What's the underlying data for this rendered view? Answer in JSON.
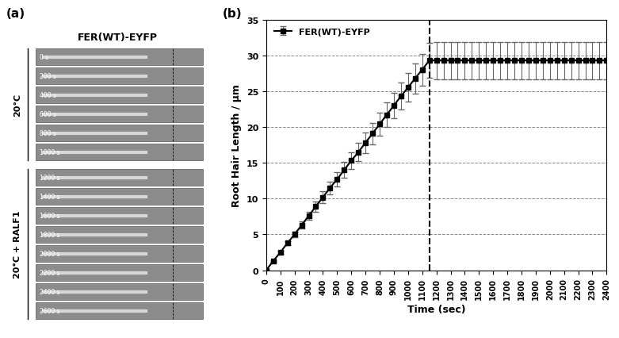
{
  "panel_a": {
    "label": "(a)",
    "title": "FER(WT)-EYFP",
    "conditions": [
      {
        "label": "20°C",
        "times": [
          "0 s",
          "200 s",
          "400 s",
          "600 s",
          "800 s",
          "1000 s"
        ]
      },
      {
        "label": "20°C + RALF1",
        "times": [
          "1200 s",
          "1400 s",
          "1600 s",
          "1800 s",
          "2000 s",
          "2200 s",
          "2400 s",
          "2600 s"
        ]
      }
    ]
  },
  "chart_data": {
    "type": "line",
    "label": "(b)",
    "x_label": "Time (sec)",
    "y_label": "Root Hair Length / µm",
    "x": [
      0,
      50,
      100,
      150,
      200,
      250,
      300,
      350,
      400,
      450,
      500,
      550,
      600,
      650,
      700,
      750,
      800,
      850,
      900,
      950,
      1000,
      1050,
      1100,
      1150,
      1200,
      1250,
      1300,
      1350,
      1400,
      1450,
      1500,
      1550,
      1600,
      1650,
      1700,
      1750,
      1800,
      1850,
      1900,
      1950,
      2000,
      2050,
      2100,
      2150,
      2200,
      2250,
      2300,
      2350,
      2400
    ],
    "series": [
      {
        "name": "FER(WT)-EYFP",
        "color": "#000000",
        "marker": "square",
        "line_style": "solid",
        "values": [
          0,
          1.3,
          2.5,
          3.8,
          5.0,
          6.3,
          7.6,
          8.9,
          10.2,
          11.5,
          12.7,
          14.0,
          15.3,
          16.5,
          17.8,
          19.1,
          20.4,
          21.7,
          23.0,
          24.3,
          25.5,
          26.8,
          28.0,
          29.3,
          29.3,
          29.3,
          29.3,
          29.3,
          29.3,
          29.3,
          29.3,
          29.3,
          29.3,
          29.3,
          29.3,
          29.3,
          29.3,
          29.3,
          29.3,
          29.3,
          29.3,
          29.3,
          29.3,
          29.3,
          29.3,
          29.3,
          29.3,
          29.3,
          29.3
        ],
        "error": [
          0,
          0.1,
          0.2,
          0.3,
          0.4,
          0.5,
          0.6,
          0.7,
          0.8,
          0.9,
          1.0,
          1.1,
          1.2,
          1.3,
          1.4,
          1.5,
          1.6,
          1.7,
          1.8,
          1.9,
          2.0,
          2.1,
          2.2,
          2.4,
          2.6,
          2.6,
          2.6,
          2.6,
          2.6,
          2.6,
          2.6,
          2.6,
          2.6,
          2.6,
          2.6,
          2.6,
          2.6,
          2.6,
          2.6,
          2.6,
          2.6,
          2.6,
          2.6,
          2.6,
          2.6,
          2.6,
          2.6,
          2.6,
          2.6
        ]
      }
    ],
    "vline": 1150,
    "xlim": [
      0,
      2400
    ],
    "xticks": [
      0,
      100,
      200,
      300,
      400,
      500,
      600,
      700,
      800,
      900,
      1000,
      1100,
      1200,
      1300,
      1400,
      1500,
      1600,
      1700,
      1800,
      1900,
      2000,
      2100,
      2200,
      2300,
      2400
    ],
    "ylim": [
      0,
      35
    ],
    "yticks": [
      0,
      5,
      10,
      15,
      20,
      25,
      30,
      35
    ],
    "grid": true,
    "legend": "upper left"
  }
}
